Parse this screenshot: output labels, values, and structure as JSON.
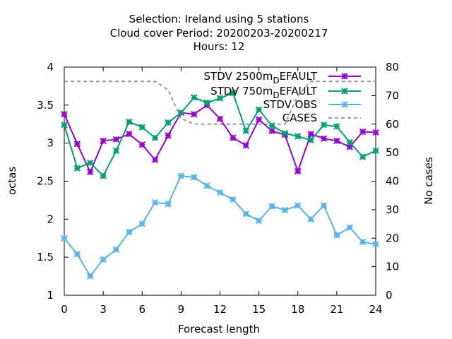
{
  "chart_data": {
    "type": "line",
    "title_lines": [
      "Selection: Ireland using      5 stations",
      "Cloud cover   Period: 20200203-20200217",
      "Hours:  12"
    ],
    "xlabel": "Forecast length",
    "ylabel": "octas",
    "y2label": "No cases",
    "xlim": [
      0,
      24
    ],
    "ylim": [
      1,
      4
    ],
    "y2lim": [
      0,
      80
    ],
    "xticks": [
      "0",
      "3",
      "6",
      "9",
      "12",
      "15",
      "18",
      "21",
      "24"
    ],
    "yticks": [
      "1",
      "1.5",
      "2",
      "2.5",
      "3",
      "3.5",
      "4"
    ],
    "y2ticks": [
      "0",
      "10",
      "20",
      "30",
      "40",
      "50",
      "60",
      "70",
      "80"
    ],
    "legend_position": "top-right",
    "grid": false,
    "x": [
      0,
      1,
      2,
      3,
      4,
      5,
      6,
      7,
      8,
      9,
      10,
      11,
      12,
      13,
      14,
      15,
      16,
      17,
      18,
      19,
      20,
      21,
      22,
      23,
      24
    ],
    "series": [
      {
        "name": "STDV 2500m_DEFAULT",
        "legend_main": "STDV 2500m",
        "legend_sub": "D",
        "legend_rest": "EFAULT",
        "color": "#9400d3",
        "axis": "y",
        "values": [
          3.38,
          2.99,
          2.62,
          3.03,
          3.05,
          3.12,
          2.98,
          2.78,
          3.1,
          3.4,
          3.38,
          3.5,
          3.32,
          3.07,
          2.97,
          3.31,
          3.16,
          3.11,
          2.63,
          3.12,
          3.06,
          3.03,
          2.95,
          3.15,
          3.14
        ]
      },
      {
        "name": "STDV 750m_DEFAULT",
        "legend_main": "STDV 750m",
        "legend_sub": "D",
        "legend_rest": "EFAULT",
        "color": "#009e73",
        "axis": "y",
        "values": [
          3.24,
          2.67,
          2.74,
          2.57,
          2.9,
          3.28,
          3.21,
          3.07,
          3.27,
          3.4,
          3.6,
          3.53,
          3.59,
          3.66,
          3.16,
          3.44,
          3.23,
          3.13,
          3.09,
          3.04,
          3.24,
          3.22,
          3.01,
          2.82,
          2.9
        ]
      },
      {
        "name": "STDV OBS",
        "legend_main": "STDV OBS",
        "legend_sub": "",
        "legend_rest": "",
        "color": "#56b4e9",
        "axis": "y",
        "values": [
          1.75,
          1.54,
          1.25,
          1.47,
          1.6,
          1.83,
          1.94,
          2.22,
          2.2,
          2.57,
          2.55,
          2.44,
          2.35,
          2.26,
          2.07,
          1.98,
          2.17,
          2.12,
          2.18,
          2.0,
          2.18,
          1.79,
          1.89,
          1.7,
          1.67
        ]
      },
      {
        "name": "CASES",
        "legend_main": "CASES",
        "legend_sub": "",
        "legend_rest": "",
        "color": "#999999",
        "axis": "y2",
        "dashed": true,
        "values": [
          75,
          75,
          75,
          75,
          75,
          75,
          75,
          75,
          72,
          62,
          60,
          60,
          60,
          60,
          60,
          60,
          60,
          60,
          70,
          75,
          75,
          75,
          75,
          75,
          75
        ]
      }
    ]
  }
}
